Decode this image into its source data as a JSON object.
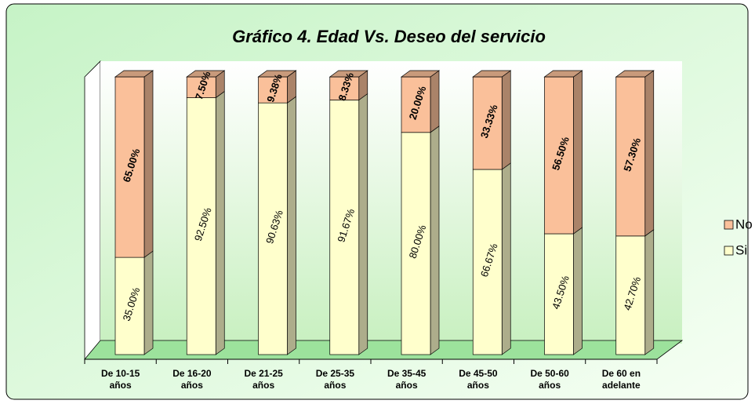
{
  "chart_data": {
    "type": "stacked_bar_3d",
    "title": "Gráfico 4. Edad Vs. Deseo del servicio",
    "categories": [
      "De 10-15 años",
      "De 16-20 años",
      "De 21-25 años",
      "De 25-35 años",
      "De 35-45 años",
      "De 45-50 años",
      "De 50-60 años",
      "De 60 en adelante"
    ],
    "series": [
      {
        "name": "Si",
        "color": "#ffffcc",
        "values": [
          35,
          92.5,
          90.63,
          91.67,
          80,
          66.67,
          43.5,
          42.7
        ],
        "value_labels": [
          "35.00%",
          "92.50%",
          "90.63%",
          "91.67%",
          "80.00%",
          "66.67%",
          "43.50%",
          "42.70%"
        ]
      },
      {
        "name": "No",
        "color": "#fac09a",
        "values": [
          65,
          7.5,
          9.38,
          8.33,
          20,
          33.33,
          56.5,
          57.3
        ],
        "value_labels": [
          "65.00%",
          "7.50%",
          "9.38%",
          "8.33%",
          "20.00%",
          "33.33%",
          "56.50%",
          "57.30%"
        ]
      }
    ],
    "ylim": [
      0,
      100
    ],
    "legend": "right"
  }
}
